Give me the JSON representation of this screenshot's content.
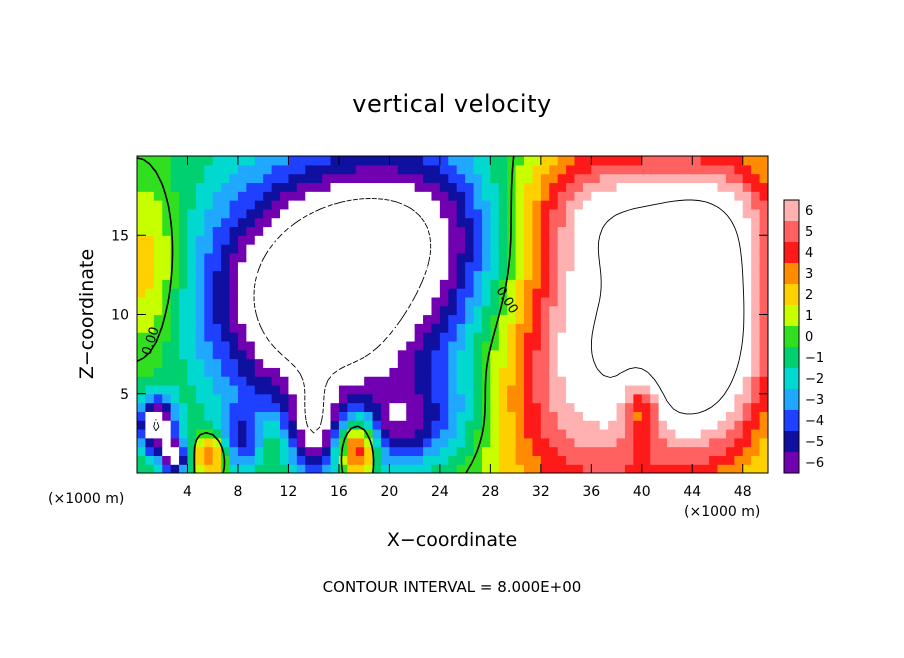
{
  "chart_data": {
    "type": "heatmap",
    "title": "vertical velocity",
    "xlabel": "X−coordinate",
    "ylabel": "Z−coordinate",
    "x_unit": "(×1000 m)",
    "y_unit": "(×1000 m)",
    "footer": "CONTOUR INTERVAL = 8.000E+00",
    "xlim": [
      0,
      50
    ],
    "ylim": [
      0,
      20
    ],
    "x_ticks": [
      4,
      8,
      12,
      16,
      20,
      24,
      28,
      32,
      36,
      40,
      44,
      48
    ],
    "x_tick_labels": [
      "4",
      "8",
      "12",
      "16",
      "20",
      "24",
      "28",
      "32",
      "36",
      "40",
      "44",
      "48"
    ],
    "y_ticks": [
      5,
      10,
      15
    ],
    "y_tick_labels": [
      "5",
      "10",
      "15"
    ],
    "contour_labels": [
      "0.00",
      "0.00"
    ],
    "colorbar": {
      "levels": [
        6,
        5,
        4,
        3,
        2,
        1,
        0,
        -1,
        -2,
        -3,
        -4,
        -5,
        -6
      ],
      "labels": [
        "6",
        "5",
        "4",
        "3",
        "2",
        "1",
        "0",
        "−1",
        "−2",
        "−3",
        "−4",
        "−5",
        "−6"
      ],
      "colors": [
        "#ffb0b0",
        "#ff6060",
        "#ff1a1a",
        "#ff8c00",
        "#ffd000",
        "#c8ff00",
        "#30e020",
        "#00d070",
        "#00d8d0",
        "#20a8ff",
        "#2040ff",
        "#1010a0",
        "#7000b0"
      ],
      "out_of_range_color": "#ffffff"
    },
    "features": [
      {
        "x": 19.5,
        "z": 13.5,
        "w": -6.5,
        "sx": 9.0,
        "sz": 6.0
      },
      {
        "x": 14.0,
        "z": 9.0,
        "w": -4.0,
        "sx": 5.0,
        "sz": 5.0
      },
      {
        "x": 13.0,
        "z": 11.0,
        "w": -3.0,
        "sx": 6.0,
        "sz": 4.0
      },
      {
        "x": 23.0,
        "z": 16.0,
        "w": -2.5,
        "sx": 6.0,
        "sz": 3.0
      },
      {
        "x": 36.0,
        "z": 8.5,
        "w": 8.5,
        "sx": 5.5,
        "sz": 7.5
      },
      {
        "x": 46.0,
        "z": 9.5,
        "w": 8.0,
        "sx": 3.5,
        "sz": 6.0
      },
      {
        "x": 40.5,
        "z": 16.5,
        "w": 4.0,
        "sx": 9.0,
        "sz": 3.0
      },
      {
        "x": 43.0,
        "z": 7.0,
        "w": 2.0,
        "sx": 3.0,
        "sz": 4.0
      },
      {
        "x": 1.0,
        "z": 13.0,
        "w": 3.0,
        "sx": 2.0,
        "sz": 3.5
      },
      {
        "x": 6.0,
        "z": 1.2,
        "w": 5.0,
        "sx": 0.9,
        "sz": 1.0
      },
      {
        "x": 17.5,
        "z": 1.6,
        "w": 6.5,
        "sx": 1.0,
        "sz": 1.4
      },
      {
        "x": 10.5,
        "z": 2.0,
        "w": 2.0,
        "sx": 0.8,
        "sz": 1.3
      },
      {
        "x": 1.5,
        "z": 3.0,
        "w": -8.0,
        "sx": 1.1,
        "sz": 1.3
      },
      {
        "x": 3.0,
        "z": 1.0,
        "w": -6.5,
        "sx": 0.7,
        "sz": 0.8
      },
      {
        "x": 8.0,
        "z": 2.0,
        "w": -3.5,
        "sx": 1.5,
        "sz": 1.5
      },
      {
        "x": 14.0,
        "z": 2.8,
        "w": -5.0,
        "sx": 1.2,
        "sz": 2.0
      },
      {
        "x": 21.0,
        "z": 3.0,
        "w": -4.0,
        "sx": 2.0,
        "sz": 2.0
      },
      {
        "x": 25.0,
        "z": 3.5,
        "w": -2.0,
        "sx": 2.0,
        "sz": 2.0
      },
      {
        "x": 40.0,
        "z": 4.0,
        "w": -4.0,
        "sx": 1.0,
        "sz": 1.5
      }
    ]
  }
}
